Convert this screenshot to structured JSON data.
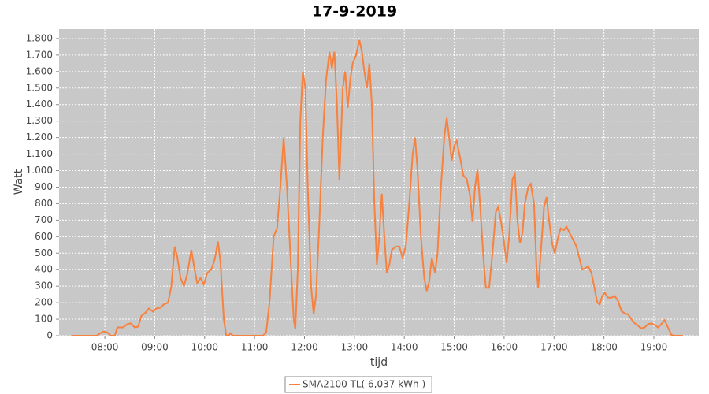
{
  "chart_data": {
    "type": "line",
    "title": "17-9-2019",
    "x_label": "tijd",
    "y_label": "Watt",
    "x": [
      "07:20",
      "07:50",
      "07:58",
      "08:03",
      "08:07",
      "08:12",
      "08:15",
      "08:22",
      "08:27",
      "08:31",
      "08:36",
      "08:40",
      "08:44",
      "08:49",
      "08:53",
      "08:58",
      "09:02",
      "09:07",
      "09:11",
      "09:16",
      "09:20",
      "09:24",
      "09:27",
      "09:31",
      "09:35",
      "09:39",
      "09:44",
      "09:48",
      "09:51",
      "09:55",
      "09:59",
      "10:03",
      "10:08",
      "10:12",
      "10:16",
      "10:19",
      "10:23",
      "10:26",
      "10:29",
      "10:31",
      "10:34",
      "10:40",
      "11:10",
      "11:14",
      "11:18",
      "11:23",
      "11:27",
      "11:31",
      "11:35",
      "11:39",
      "11:43",
      "11:47",
      "11:49",
      "11:52",
      "11:55",
      "11:58",
      "12:01",
      "12:04",
      "12:08",
      "12:11",
      "12:14",
      "12:18",
      "12:22",
      "12:26",
      "12:30",
      "12:33",
      "12:36",
      "12:39",
      "12:42",
      "12:46",
      "12:49",
      "12:52",
      "12:55",
      "12:58",
      "13:02",
      "13:06",
      "13:09",
      "13:12",
      "13:15",
      "13:18",
      "13:21",
      "13:24",
      "13:27",
      "13:30",
      "13:33",
      "13:36",
      "13:39",
      "13:42",
      "13:45",
      "13:50",
      "13:54",
      "13:58",
      "14:02",
      "14:06",
      "14:10",
      "14:13",
      "14:16",
      "14:20",
      "14:24",
      "14:27",
      "14:30",
      "14:33",
      "14:37",
      "14:40",
      "14:44",
      "14:48",
      "14:51",
      "14:54",
      "14:57",
      "15:00",
      "15:03",
      "15:07",
      "15:11",
      "15:15",
      "15:19",
      "15:22",
      "15:25",
      "15:28",
      "15:31",
      "15:35",
      "15:38",
      "15:42",
      "15:46",
      "15:50",
      "15:53",
      "15:56",
      "15:59",
      "16:03",
      "16:06",
      "16:10",
      "16:13",
      "16:16",
      "16:19",
      "16:22",
      "16:25",
      "16:29",
      "16:32",
      "16:36",
      "16:39",
      "16:41",
      "16:44",
      "16:48",
      "16:51",
      "16:54",
      "16:58",
      "17:01",
      "17:05",
      "17:08",
      "17:12",
      "17:15",
      "17:19",
      "17:23",
      "17:27",
      "17:30",
      "17:34",
      "17:38",
      "17:41",
      "17:45",
      "17:49",
      "17:52",
      "17:55",
      "17:58",
      "18:01",
      "18:05",
      "18:09",
      "18:13",
      "18:17",
      "18:21",
      "18:25",
      "18:29",
      "18:33",
      "18:37",
      "18:41",
      "18:45",
      "18:49",
      "18:53",
      "18:57",
      "19:01",
      "19:05",
      "19:09",
      "19:13",
      "19:17",
      "19:21",
      "19:25",
      "19:35"
    ],
    "series": [
      {
        "name": "SMA2100 TL( 6,037 kWh )",
        "color": "#f7813f",
        "values": [
          0,
          0,
          25,
          20,
          0,
          0,
          50,
          50,
          70,
          75,
          50,
          55,
          120,
          140,
          165,
          145,
          165,
          170,
          190,
          200,
          300,
          540,
          480,
          350,
          300,
          370,
          520,
          400,
          320,
          350,
          310,
          380,
          400,
          460,
          570,
          450,
          100,
          0,
          0,
          15,
          0,
          0,
          0,
          20,
          200,
          600,
          650,
          900,
          1200,
          900,
          500,
          100,
          40,
          400,
          1300,
          1600,
          1500,
          900,
          300,
          130,
          250,
          700,
          1200,
          1550,
          1720,
          1620,
          1720,
          1400,
          940,
          1500,
          1600,
          1380,
          1550,
          1650,
          1700,
          1790,
          1720,
          1600,
          1500,
          1650,
          1400,
          800,
          430,
          600,
          860,
          600,
          380,
          430,
          520,
          540,
          540,
          470,
          550,
          800,
          1100,
          1200,
          1000,
          600,
          350,
          270,
          330,
          470,
          380,
          500,
          900,
          1200,
          1320,
          1200,
          1060,
          1150,
          1180,
          1080,
          970,
          950,
          850,
          690,
          900,
          1010,
          800,
          480,
          290,
          290,
          500,
          750,
          780,
          700,
          600,
          440,
          600,
          950,
          980,
          700,
          560,
          620,
          800,
          900,
          920,
          800,
          400,
          290,
          500,
          780,
          840,
          700,
          550,
          500,
          600,
          650,
          640,
          660,
          620,
          580,
          540,
          480,
          400,
          410,
          420,
          380,
          280,
          200,
          190,
          240,
          260,
          230,
          230,
          240,
          210,
          150,
          135,
          130,
          100,
          75,
          60,
          45,
          50,
          70,
          75,
          65,
          50,
          70,
          95,
          50,
          5,
          0,
          0
        ]
      }
    ],
    "xlim": [
      "07:05",
      "19:54"
    ],
    "xticks": [
      "08:00",
      "09:00",
      "10:00",
      "11:00",
      "12:00",
      "13:00",
      "14:00",
      "15:00",
      "16:00",
      "17:00",
      "18:00",
      "19:00"
    ],
    "ylim": [
      0,
      1857
    ],
    "yticks": [
      0,
      100,
      200,
      300,
      400,
      500,
      600,
      700,
      800,
      900,
      {
        "value": 1000,
        "label": "1.000"
      },
      {
        "value": 1100,
        "label": "1.100"
      },
      {
        "value": 1200,
        "label": "1.200"
      },
      {
        "value": 1300,
        "label": "1.300"
      },
      {
        "value": 1400,
        "label": "1.400"
      },
      {
        "value": 1500,
        "label": "1.500"
      },
      {
        "value": 1600,
        "label": "1.600"
      },
      {
        "value": 1700,
        "label": "1.700"
      },
      {
        "value": 1800,
        "label": "1.800"
      }
    ],
    "grid": true,
    "legend": "bottom"
  }
}
